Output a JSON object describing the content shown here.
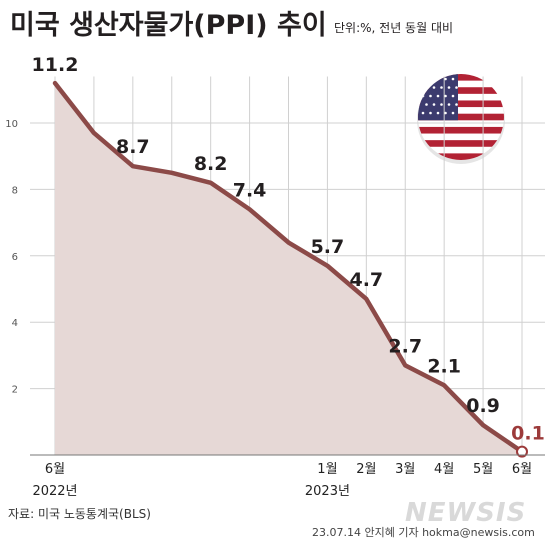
{
  "title": "미국 생산자물가(PPI) 추이",
  "unit_note": "단위:%, 전년 동월 대비",
  "source": "자료: 미국 노동통계국(BLS)",
  "credit": "23.07.14 안지혜  기자  hokma@newsis.com",
  "watermark": "NEWSIS",
  "flag_icon": "us-flag-icon",
  "colors": {
    "line": "#8c4a48",
    "area": "#e6d8d6",
    "last_marker": "#9c3a3a",
    "grid": "#d0d0d0"
  },
  "chart_data": {
    "type": "area",
    "title": "미국 생산자물가(PPI) 추이",
    "ylim": [
      0,
      12
    ],
    "yticks": [
      2,
      4,
      6,
      8,
      10
    ],
    "grid": true,
    "points": [
      {
        "x": "2022-06",
        "y": 11.2,
        "label": "11.2"
      },
      {
        "x": "2022-07",
        "y": 9.7
      },
      {
        "x": "2022-08",
        "y": 8.7,
        "label": "8.7"
      },
      {
        "x": "2022-09",
        "y": 8.5
      },
      {
        "x": "2022-10",
        "y": 8.2,
        "label": "8.2"
      },
      {
        "x": "2022-11",
        "y": 7.4,
        "label": "7.4"
      },
      {
        "x": "2022-12",
        "y": 6.4
      },
      {
        "x": "2023-01",
        "y": 5.7,
        "label": "5.7"
      },
      {
        "x": "2023-02",
        "y": 4.7,
        "label": "4.7"
      },
      {
        "x": "2023-03",
        "y": 2.7,
        "label": "2.7"
      },
      {
        "x": "2023-04",
        "y": 2.1,
        "label": "2.1"
      },
      {
        "x": "2023-05",
        "y": 0.9,
        "label": "0.9"
      },
      {
        "x": "2023-06",
        "y": 0.1,
        "label": "0.1"
      }
    ],
    "x_tick_labels": [
      {
        "x": "2022-06",
        "text": "6월"
      },
      {
        "x": "2023-01",
        "text": "1월"
      },
      {
        "x": "2023-02",
        "text": "2월"
      },
      {
        "x": "2023-03",
        "text": "3월"
      },
      {
        "x": "2023-04",
        "text": "4월"
      },
      {
        "x": "2023-05",
        "text": "5월"
      },
      {
        "x": "2023-06",
        "text": "6월"
      }
    ],
    "year_labels": [
      {
        "x": "2022-06",
        "text": "2022년"
      },
      {
        "x": "2023-01",
        "text": "2023년"
      }
    ]
  }
}
